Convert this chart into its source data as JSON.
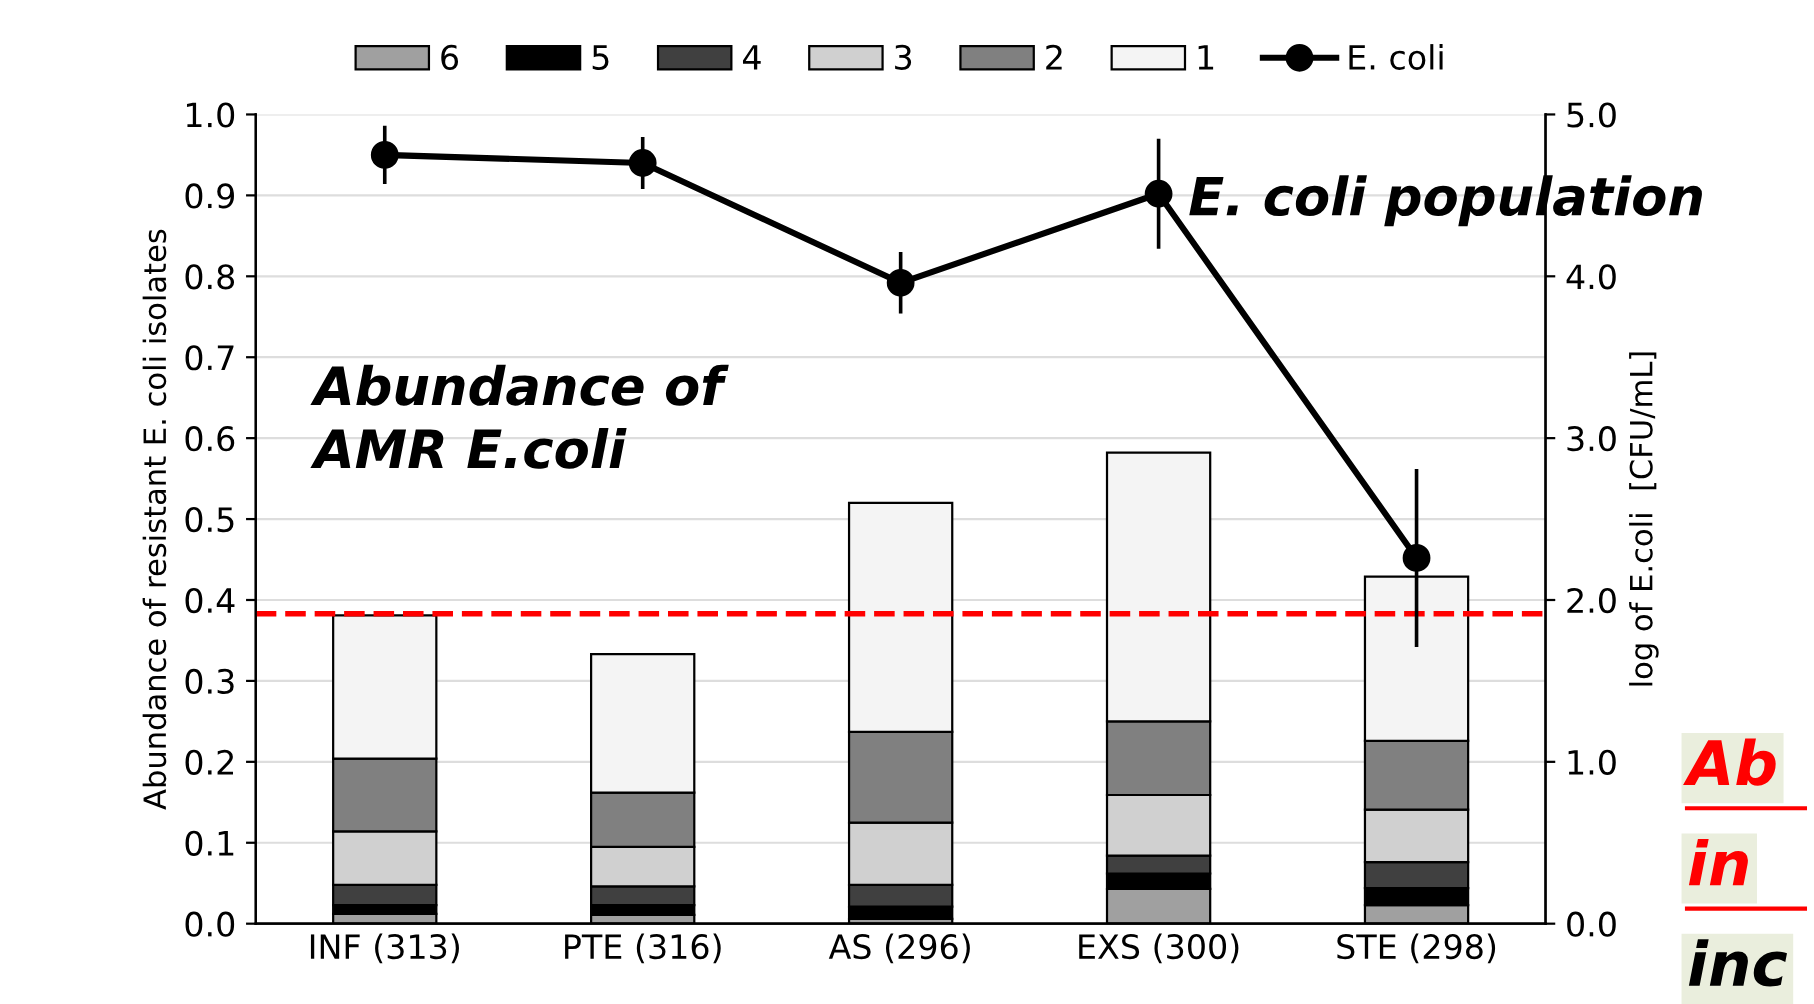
{
  "chart_data": {
    "type": "bar",
    "stacked": true,
    "categories": [
      "INF (313)",
      "PTE (316)",
      "AS (296)",
      "EXS (300)",
      "STE (298)"
    ],
    "series": [
      {
        "name": "6",
        "color": "#a0a0a0",
        "values": [
          0.012,
          0.011,
          0.006,
          0.043,
          0.023
        ]
      },
      {
        "name": "5",
        "color": "#000000",
        "values": [
          0.011,
          0.012,
          0.015,
          0.019,
          0.021
        ]
      },
      {
        "name": "4",
        "color": "#404040",
        "values": [
          0.025,
          0.023,
          0.027,
          0.022,
          0.032
        ]
      },
      {
        "name": "3",
        "color": "#d0d0d0",
        "values": [
          0.066,
          0.049,
          0.077,
          0.075,
          0.065
        ]
      },
      {
        "name": "2",
        "color": "#808080",
        "values": [
          0.09,
          0.067,
          0.112,
          0.091,
          0.085
        ]
      },
      {
        "name": "1",
        "color": "#f4f4f4",
        "values": [
          0.177,
          0.171,
          0.283,
          0.332,
          0.203
        ]
      },
      {
        "name": "E. coli",
        "type": "line",
        "axis": "y2",
        "color": "#000000",
        "marker": "circle",
        "values": [
          4.75,
          4.7,
          3.96,
          4.51,
          2.26
        ],
        "errors": [
          0.18,
          0.16,
          0.19,
          0.34,
          0.55
        ]
      }
    ],
    "ylabel": "Abundance of resistant E. coli isolates",
    "y2label": "log of E.coli  [CFU/mL]",
    "ylim": [
      0,
      1
    ],
    "yticks": [
      {
        "value": 0,
        "label": "0.0"
      },
      {
        "value": 0.1,
        "label": "0.1"
      },
      {
        "value": 0.2,
        "label": "0.2"
      },
      {
        "value": 0.3,
        "label": "0.3"
      },
      {
        "value": 0.4,
        "label": "0.4"
      },
      {
        "value": 0.5,
        "label": "0.5"
      },
      {
        "value": 0.6,
        "label": "0.6"
      },
      {
        "value": 0.7,
        "label": "0.7"
      },
      {
        "value": 0.8,
        "label": "0.8"
      },
      {
        "value": 0.9,
        "label": "0.9"
      },
      {
        "value": 1,
        "label": "1.0"
      }
    ],
    "y2lim": [
      0,
      5
    ],
    "y2ticks": [
      {
        "value": 0,
        "label": "0.0"
      },
      {
        "value": 1,
        "label": "1.0"
      },
      {
        "value": 2,
        "label": "2.0"
      },
      {
        "value": 3,
        "label": "3.0"
      },
      {
        "value": 4,
        "label": "4.0"
      },
      {
        "value": 5,
        "label": "5.0"
      }
    ],
    "ref_lines": [
      {
        "axis": "y",
        "value": 0.383,
        "color": "#ff0000",
        "line_style": "dashed"
      }
    ],
    "annotations": [
      "Abundance of\nAMR E.coli",
      "E. coli population",
      "Ab",
      "in",
      "inc"
    ],
    "grid": "y",
    "legend": "top"
  }
}
